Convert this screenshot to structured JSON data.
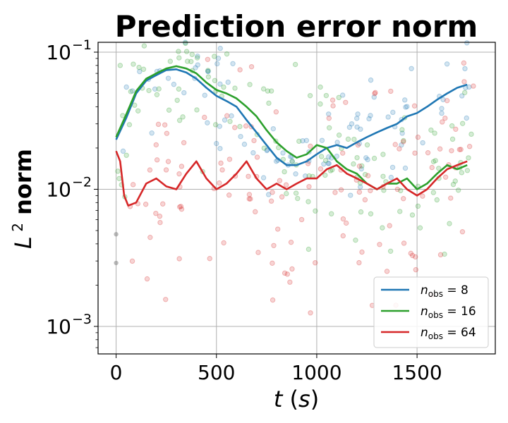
{
  "chart_data": {
    "type": "line",
    "title": "Prediction error norm",
    "xlabel": "t (s)",
    "ylabel": "L 2 norm",
    "y_scale": "log",
    "xlim": [
      -90,
      1890
    ],
    "ylim": [
      0.00063,
      0.118
    ],
    "x_ticks": [
      {
        "value": 0,
        "label": "0"
      },
      {
        "value": 500,
        "label": "500"
      },
      {
        "value": 1000,
        "label": "1000"
      },
      {
        "value": 1500,
        "label": "1500"
      }
    ],
    "y_ticks": [
      {
        "value": 0.001,
        "base": "10",
        "exp": "−3"
      },
      {
        "value": 0.01,
        "base": "10",
        "exp": "−2"
      },
      {
        "value": 0.1,
        "base": "10",
        "exp": "−1"
      }
    ],
    "grid": true,
    "legend_position": "lower-right",
    "series": [
      {
        "name": "n_obs = 8",
        "label_main": "n",
        "label_sub": "obs",
        "label_rest": " = 8",
        "color": "#1f77b4",
        "x": [
          0,
          50,
          100,
          150,
          200,
          250,
          300,
          350,
          400,
          450,
          500,
          550,
          600,
          650,
          700,
          750,
          800,
          850,
          900,
          950,
          1000,
          1050,
          1100,
          1150,
          1200,
          1250,
          1300,
          1350,
          1400,
          1450,
          1500,
          1550,
          1600,
          1650,
          1700,
          1750
        ],
        "values": [
          0.023,
          0.033,
          0.05,
          0.062,
          0.068,
          0.074,
          0.075,
          0.071,
          0.064,
          0.055,
          0.048,
          0.044,
          0.04,
          0.032,
          0.026,
          0.021,
          0.017,
          0.015,
          0.015,
          0.016,
          0.018,
          0.02,
          0.021,
          0.02,
          0.022,
          0.024,
          0.026,
          0.028,
          0.03,
          0.034,
          0.036,
          0.04,
          0.045,
          0.05,
          0.055,
          0.058
        ]
      },
      {
        "name": "n_obs = 16",
        "label_main": "n",
        "label_sub": "obs",
        "label_rest": " = 16",
        "color": "#2ca02c",
        "x": [
          0,
          50,
          100,
          150,
          200,
          250,
          300,
          350,
          400,
          450,
          500,
          550,
          600,
          650,
          700,
          750,
          800,
          850,
          900,
          950,
          1000,
          1050,
          1100,
          1150,
          1200,
          1250,
          1300,
          1350,
          1400,
          1450,
          1500,
          1550,
          1600,
          1650,
          1700,
          1750
        ],
        "values": [
          0.024,
          0.035,
          0.052,
          0.064,
          0.07,
          0.076,
          0.079,
          0.076,
          0.07,
          0.06,
          0.053,
          0.05,
          0.046,
          0.04,
          0.034,
          0.027,
          0.022,
          0.019,
          0.017,
          0.018,
          0.021,
          0.02,
          0.016,
          0.014,
          0.013,
          0.011,
          0.01,
          0.011,
          0.011,
          0.012,
          0.01,
          0.011,
          0.013,
          0.015,
          0.014,
          0.015
        ]
      },
      {
        "name": "n_obs = 64",
        "label_main": "n",
        "label_sub": "obs",
        "label_rest": " = 64",
        "color": "#d62728",
        "x": [
          0,
          20,
          40,
          60,
          100,
          150,
          200,
          250,
          300,
          350,
          400,
          450,
          500,
          550,
          600,
          650,
          700,
          750,
          800,
          850,
          900,
          950,
          1000,
          1050,
          1100,
          1150,
          1200,
          1250,
          1300,
          1350,
          1400,
          1450,
          1500,
          1550,
          1600,
          1650,
          1700,
          1750
        ],
        "values": [
          0.019,
          0.016,
          0.009,
          0.0076,
          0.008,
          0.011,
          0.012,
          0.0105,
          0.01,
          0.013,
          0.016,
          0.012,
          0.01,
          0.011,
          0.013,
          0.016,
          0.012,
          0.01,
          0.011,
          0.01,
          0.011,
          0.012,
          0.012,
          0.014,
          0.015,
          0.013,
          0.012,
          0.011,
          0.01,
          0.011,
          0.012,
          0.01,
          0.009,
          0.01,
          0.012,
          0.014,
          0.015,
          0.016
        ]
      }
    ]
  }
}
